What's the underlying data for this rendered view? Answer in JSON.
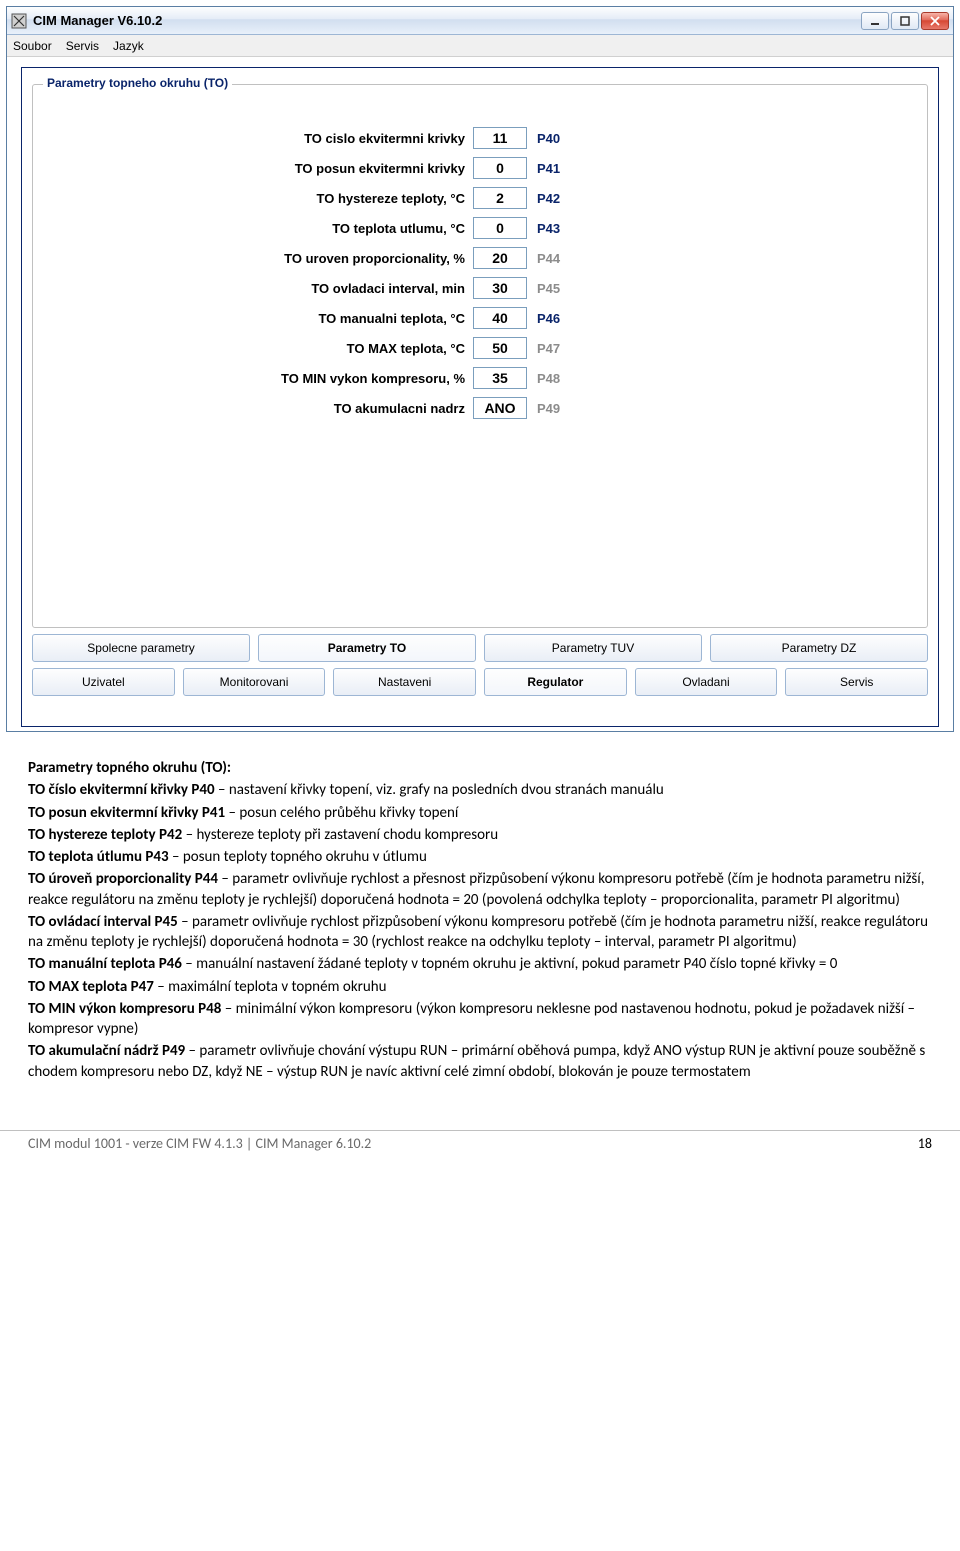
{
  "window": {
    "title": "CIM Manager  V6.10.2",
    "menu": [
      "Soubor",
      "Servis",
      "Jazyk"
    ]
  },
  "groupbox_legend": "Parametry topneho okruhu (TO)",
  "params": [
    {
      "label": "TO cislo ekvitermni krivky",
      "value": "11",
      "code": "P40",
      "code_style": "blue"
    },
    {
      "label": "TO posun ekvitermni krivky",
      "value": "0",
      "code": "P41",
      "code_style": "blue"
    },
    {
      "label": "TO hystereze teploty, °C",
      "value": "2",
      "code": "P42",
      "code_style": "blue"
    },
    {
      "label": "TO teplota utlumu, °C",
      "value": "0",
      "code": "P43",
      "code_style": "blue"
    },
    {
      "label": "TO uroven proporcionality, %",
      "value": "20",
      "code": "P44",
      "code_style": "grey"
    },
    {
      "label": "TO ovladaci interval, min",
      "value": "30",
      "code": "P45",
      "code_style": "grey"
    },
    {
      "label": "TO manualni teplota, °C",
      "value": "40",
      "code": "P46",
      "code_style": "blue"
    },
    {
      "label": "TO MAX teplota, °C",
      "value": "50",
      "code": "P47",
      "code_style": "grey"
    },
    {
      "label": "TO MIN vykon kompresoru, %",
      "value": "35",
      "code": "P48",
      "code_style": "grey"
    },
    {
      "label": "TO akumulacni nadrz",
      "value": "ANO",
      "code": "P49",
      "code_style": "grey"
    }
  ],
  "tabs_upper": [
    {
      "label": "Spolecne parametry",
      "active": false
    },
    {
      "label": "Parametry TO",
      "active": true
    },
    {
      "label": "Parametry TUV",
      "active": false
    },
    {
      "label": "Parametry DZ",
      "active": false
    }
  ],
  "tabs_lower": [
    {
      "label": "Uzivatel",
      "active": false
    },
    {
      "label": "Monitorovani",
      "active": false
    },
    {
      "label": "Nastaveni",
      "active": false
    },
    {
      "label": "Regulator",
      "active": true
    },
    {
      "label": "Ovladani",
      "active": false
    },
    {
      "label": "Servis",
      "active": false
    }
  ],
  "doc": {
    "h": "Parametry topného okruhu (TO):",
    "lines": [
      {
        "b": "TO číslo ekvitermní křivky P40",
        "t": " – nastavení křivky topení, viz. grafy na posledních dvou stranách manuálu"
      },
      {
        "b": "TO posun ekvitermní křivky P41",
        "t": " – posun celého průběhu křivky topení"
      },
      {
        "b": "TO hystereze teploty P42",
        "t": " – hystereze teploty při zastavení chodu kompresoru"
      },
      {
        "b": "TO teplota útlumu P43",
        "t": " – posun teploty topného okruhu v útlumu"
      },
      {
        "b": "TO úroveň proporcionality P44",
        "t": " – parametr ovlivňuje rychlost a přesnost přizpůsobení výkonu kompresoru potřebě (čím je hodnota parametru nižší, reakce regulátoru na změnu teploty je rychlejší) doporučená hodnota = 20 (povolená odchylka teploty – proporcionalita, parametr PI algoritmu)"
      },
      {
        "b": "TO ovládací interval P45",
        "t": " – parametr ovlivňuje rychlost přizpůsobení výkonu kompresoru potřebě (čím je hodnota parametru nižší, reakce regulátoru na změnu teploty je rychlejší) doporučená hodnota = 30 (rychlost reakce na odchylku teploty – interval, parametr PI algoritmu)"
      },
      {
        "b": "TO manuální teplota P46",
        "t": " – manuální nastavení žádané teploty v topném okruhu je aktivní, pokud parametr P40 číslo topné křivky = 0"
      },
      {
        "b": "TO MAX teplota P47",
        "t": " – maximální teplota v topném okruhu"
      },
      {
        "b": "TO MIN výkon kompresoru P48",
        "t": " – minimální výkon kompresoru (výkon kompresoru neklesne pod nastavenou hodnotu, pokud je požadavek nižší – kompresor vypne)"
      },
      {
        "b": "TO akumulační nádrž P49",
        "t": " – parametr ovlivňuje chování výstupu RUN – primární oběhová pumpa, když ANO výstup RUN je aktivní pouze souběžně s chodem kompresoru nebo DZ, když NE – výstup RUN je navíc aktivní celé zimní období, blokován je pouze termostatem"
      }
    ]
  },
  "footer": {
    "left": "CIM modul 1001 - verze CIM FW 4.1.3 | CIM Manager 6.10.2",
    "page": "18"
  }
}
